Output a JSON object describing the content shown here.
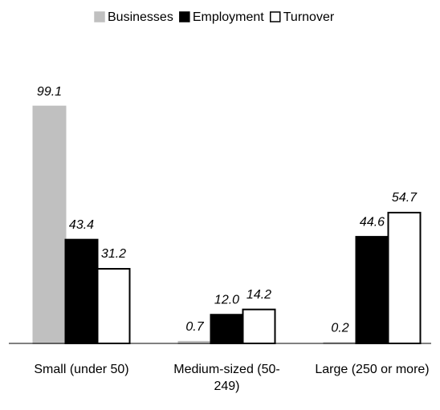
{
  "chart_data": {
    "type": "bar",
    "categories": [
      "Small (under 50)",
      "Medium-sized (50-249)",
      "Large (250 or more)"
    ],
    "series": [
      {
        "name": "Businesses",
        "color": "#c0c0c0",
        "values": [
          99.1,
          0.7,
          0.2
        ],
        "value_labels": [
          "99.1",
          "0.7",
          "0.2"
        ]
      },
      {
        "name": "Employment",
        "color": "#000000",
        "values": [
          43.4,
          12,
          44.6
        ],
        "value_labels": [
          "43.4",
          "12.0",
          "44.6"
        ]
      },
      {
        "name": "Turnover",
        "color": "#ffffff",
        "values": [
          31.2,
          14.2,
          54.7
        ],
        "value_labels": [
          "31.2",
          "14.2",
          "54.7"
        ]
      }
    ],
    "ylim": [
      0,
      100
    ],
    "legend": "top"
  }
}
